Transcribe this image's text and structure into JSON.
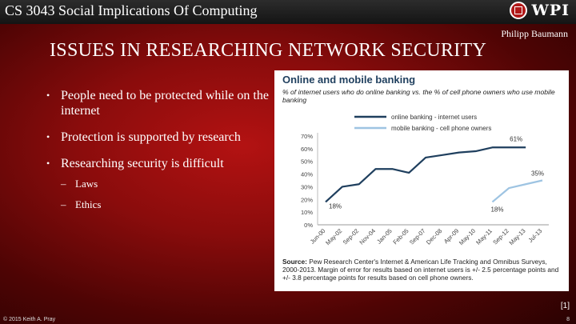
{
  "header": {
    "course_title": "CS 3043 Social Implications Of Computing",
    "logo_text": "WPI"
  },
  "author": "Philipp Baumann",
  "title": "ISSUES IN RESEARCHING NETWORK SECURITY",
  "bullets": [
    {
      "text": "People need to be protected while on the internet"
    },
    {
      "text": "Protection is supported by research"
    },
    {
      "text": "Researching security is difficult",
      "subs": [
        "Laws",
        "Ethics"
      ]
    }
  ],
  "chart_data": {
    "type": "line",
    "title": "Online and mobile banking",
    "subtitle": "% of internet users who do online banking vs. the % of cell phone owners who use mobile banking",
    "categories": [
      "Jun-00",
      "May-02",
      "Sep-02",
      "Nov-04",
      "Jan-05",
      "Feb-05",
      "Sep-07",
      "Dec-08",
      "Apr-09",
      "May-10",
      "May-11",
      "Sep-12",
      "May-13",
      "Jul-13"
    ],
    "ylim": [
      0,
      70
    ],
    "yticks": [
      "0%",
      "10%",
      "20%",
      "30%",
      "40%",
      "50%",
      "60%",
      "70%"
    ],
    "series": [
      {
        "name": "online banking - internet users",
        "color": "#1f3f5e",
        "values": [
          18,
          30,
          32,
          44,
          44,
          41,
          53,
          55,
          57,
          58,
          61,
          61,
          61,
          null
        ]
      },
      {
        "name": "mobile banking - cell phone owners",
        "color": "#9ec4e2",
        "values": [
          null,
          null,
          null,
          null,
          null,
          null,
          null,
          null,
          null,
          null,
          18,
          29,
          32,
          35
        ]
      }
    ],
    "annotations": [
      "18%",
      "61%",
      "35%",
      "18%"
    ],
    "source_label": "Source:",
    "source_text": "Pew Research Center's Internet & American Life Tracking and Omnibus Surveys, 2000-2013.  Margin of error for results based on internet users is +/- 2.5 percentage points and +/- 3.8 percentage points for results based on cell phone owners.",
    "grid": false,
    "legend": "top"
  },
  "reference": "[1]",
  "footer": {
    "copyright": "© 2015 Keith A. Pray",
    "page": "8"
  }
}
